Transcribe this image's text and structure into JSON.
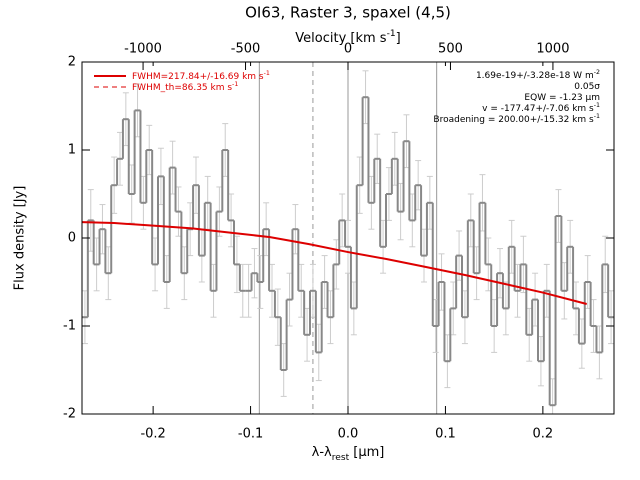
{
  "chart_data": {
    "type": "step",
    "title": "OI63, Raster 3, spaxel (4,5)",
    "xlabel": {
      "main": "λ-λ",
      "sub": "rest",
      "tail": " [μm]"
    },
    "ylabel": "Flux density [Jy]",
    "x2label": {
      "main": "Velocity [km s",
      "sup": "-1",
      "tail": "]"
    },
    "xlim": [
      -0.273,
      0.273
    ],
    "xticks": [
      -0.2,
      -0.1,
      {
        "value": 0,
        "label": "0.0"
      },
      0.1,
      0.2
    ],
    "x2lim": [
      -1298,
      1298
    ],
    "x2ticks": [
      -1000,
      -500,
      0,
      500,
      1000
    ],
    "ylim": [
      -2,
      2
    ],
    "yticks": [
      -2,
      -1,
      0,
      1,
      2
    ],
    "data": {
      "color": "#888888",
      "x": [
        -0.27,
        -0.264,
        -0.258,
        -0.252,
        -0.246,
        -0.24,
        -0.234,
        -0.228,
        -0.222,
        -0.216,
        -0.21,
        -0.204,
        -0.198,
        -0.192,
        -0.186,
        -0.18,
        -0.174,
        -0.168,
        -0.162,
        -0.156,
        -0.15,
        -0.144,
        -0.138,
        -0.132,
        -0.126,
        -0.12,
        -0.114,
        -0.108,
        -0.102,
        -0.096,
        -0.09,
        -0.084,
        -0.078,
        -0.072,
        -0.066,
        -0.06,
        -0.054,
        -0.048,
        -0.042,
        -0.036,
        -0.03,
        -0.024,
        -0.018,
        -0.012,
        -0.006,
        0,
        0.006,
        0.012,
        0.018,
        0.024,
        0.03,
        0.036,
        0.042,
        0.048,
        0.054,
        0.06,
        0.066,
        0.072,
        0.078,
        0.084,
        0.09,
        0.096,
        0.102,
        0.108,
        0.114,
        0.12,
        0.126,
        0.132,
        0.138,
        0.144,
        0.15,
        0.156,
        0.162,
        0.168,
        0.174,
        0.18,
        0.186,
        0.192,
        0.198,
        0.204,
        0.21,
        0.216,
        0.222,
        0.228,
        0.234,
        0.24,
        0.246,
        0.252,
        0.258,
        0.264,
        0.27
      ],
      "values": [
        -0.9,
        0.2,
        -0.3,
        0.1,
        -0.4,
        0.6,
        0.9,
        1.35,
        0.5,
        1.45,
        0.4,
        1.0,
        -0.3,
        0.7,
        -0.5,
        0.8,
        0.3,
        -0.4,
        0.1,
        0.6,
        -0.2,
        0.4,
        -0.6,
        0.3,
        1.0,
        0.2,
        -0.3,
        -0.6,
        -0.6,
        -0.4,
        -0.5,
        0.1,
        -0.6,
        -0.9,
        -1.5,
        -0.7,
        0.1,
        -0.6,
        -1.1,
        -0.6,
        -1.3,
        -0.5,
        -0.9,
        -0.3,
        0.2,
        -0.1,
        -0.8,
        0.6,
        1.6,
        0.4,
        0.9,
        -0.1,
        0.5,
        0.9,
        0.3,
        1.1,
        0.2,
        0.6,
        -0.2,
        0.4,
        -1.0,
        -0.5,
        -1.4,
        -0.8,
        -0.2,
        -0.9,
        0.2,
        -0.4,
        0.4,
        -0.3,
        -1.0,
        -0.4,
        -0.8,
        -0.1,
        -0.6,
        -0.3,
        -1.1,
        -0.7,
        -1.4,
        -0.6,
        -1.9,
        0.25,
        -0.6,
        -0.1,
        -0.8,
        -1.2,
        -0.5,
        -1.0,
        -1.3,
        -0.3,
        -0.9
      ],
      "errors": [
        0.3,
        0.35,
        0.3,
        0.28,
        0.3,
        0.32,
        0.3,
        0.3,
        0.33,
        0.3,
        0.3,
        0.28,
        0.3,
        0.32,
        0.3,
        0.3,
        0.28,
        0.3,
        0.3,
        0.32,
        0.3,
        0.3,
        0.3,
        0.28,
        0.3,
        0.3,
        0.32,
        0.3,
        0.3,
        0.28,
        0.3,
        0.3,
        0.3,
        0.32,
        0.3,
        0.3,
        0.28,
        0.3,
        0.3,
        0.3,
        0.32,
        0.3,
        0.3,
        0.28,
        0.3,
        0.3,
        0.3,
        0.32,
        0.3,
        0.3,
        0.28,
        0.3,
        0.3,
        0.3,
        0.32,
        0.3,
        0.3,
        0.28,
        0.3,
        0.3,
        0.3,
        0.32,
        0.3,
        0.3,
        0.28,
        0.3,
        0.3,
        0.3,
        0.32,
        0.3,
        0.3,
        0.28,
        0.3,
        0.3,
        0.3,
        0.32,
        0.3,
        0.3,
        0.28,
        0.3,
        0.3,
        0.3,
        0.32,
        0.3,
        0.3,
        0.28,
        0.3,
        0.3,
        0.3,
        0.32,
        0.3
      ]
    },
    "fit": {
      "color": "#dd0000",
      "x": [
        -0.273,
        -0.24,
        -0.2,
        -0.16,
        -0.12,
        -0.08,
        -0.04,
        0,
        0.04,
        0.08,
        0.12,
        0.16,
        0.2,
        0.245
      ],
      "values": [
        0.18,
        0.17,
        0.14,
        0.11,
        0.06,
        0.01,
        -0.07,
        -0.16,
        -0.24,
        -0.33,
        -0.42,
        -0.52,
        -0.62,
        -0.75
      ]
    },
    "vlines": [
      {
        "x": -0.091,
        "style": "solid"
      },
      {
        "x": -0.036,
        "style": "dashed"
      },
      {
        "x": 0,
        "style": "solid"
      },
      {
        "x": 0.091,
        "style": "solid"
      }
    ],
    "legend_position": "upper-left",
    "legend": [
      {
        "main": "FWHM=217.84+/-16.69 km s",
        "sup": "-1",
        "style": "solid",
        "color": "#dd0000"
      },
      {
        "main": "FWHM_th=86.35 km s",
        "sup": "-1",
        "style": "dashed",
        "color": "#dd0000"
      }
    ],
    "annotations": [
      {
        "main": "1.69e-19+/-3.28e-18 W m",
        "sup": "-2"
      },
      {
        "main": "0.05σ"
      },
      {
        "main": "EQW = -1.23 μm"
      },
      {
        "main": "v = -177.47+/-7.06 km s",
        "sup": "-1"
      },
      {
        "main": "Broadening = 200.00+/-15.32 km s",
        "sup": "-1"
      }
    ]
  }
}
